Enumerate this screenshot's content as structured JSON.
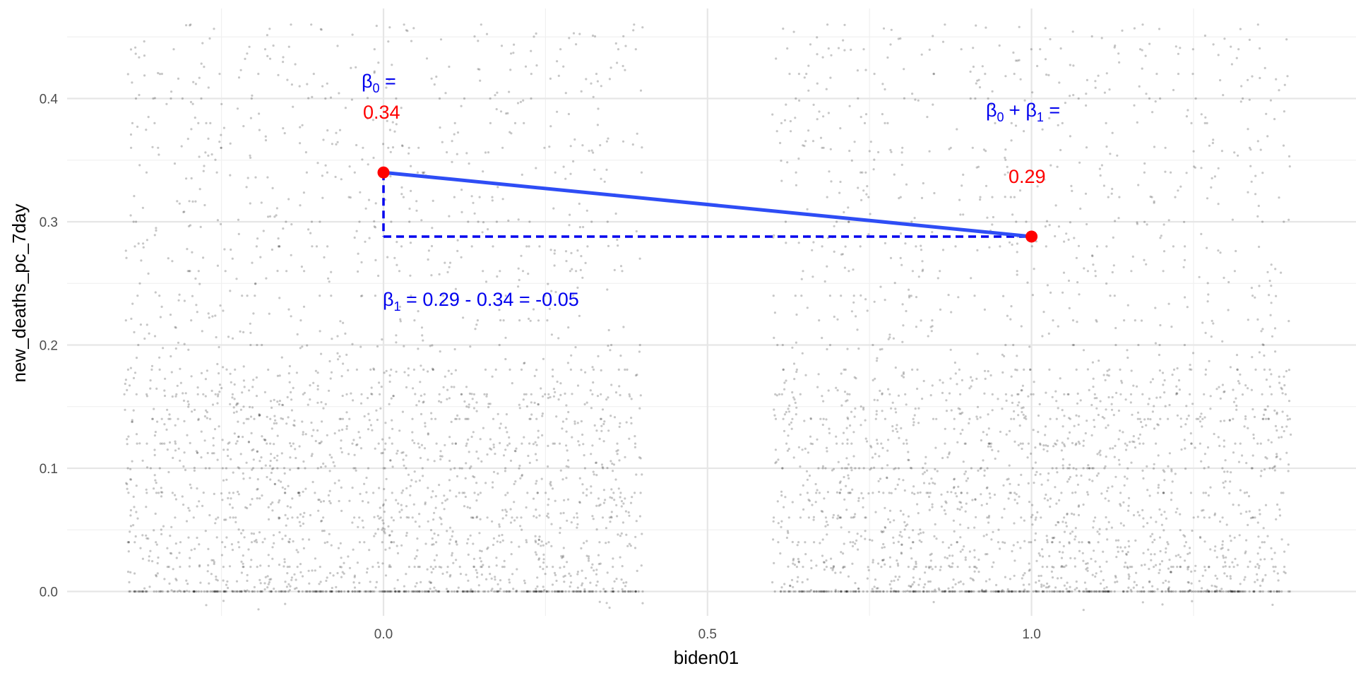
{
  "chart_data": {
    "type": "scatter",
    "title": "",
    "xlabel": "biden01",
    "ylabel": "new_deaths_pc_7day",
    "xlim": [
      -0.4,
      1.4
    ],
    "ylim": [
      0,
      0.46
    ],
    "x_ticks": [
      0.0,
      0.5,
      1.0
    ],
    "x_tick_labels": [
      "0.0",
      "0.5",
      "1.0"
    ],
    "y_ticks": [
      0.0,
      0.1,
      0.2,
      0.3,
      0.4
    ],
    "y_tick_labels": [
      "0.0",
      "0.1",
      "0.2",
      "0.3",
      "0.4"
    ],
    "grid": true,
    "jitter": {
      "description": "jittered points around x=0 and x=1",
      "groups": [
        {
          "x": 0,
          "x_range": [
            -0.4,
            0.4
          ]
        },
        {
          "x": 1,
          "x_range": [
            0.6,
            1.4
          ]
        }
      ],
      "point_color": "#000000",
      "point_alpha": 0.22
    },
    "fit_line": {
      "points": [
        {
          "x": 0,
          "y": 0.34
        },
        {
          "x": 1,
          "y": 0.288
        }
      ],
      "color": "#2e4df5"
    },
    "mean_points": [
      {
        "x": 0,
        "y": 0.34,
        "color": "#ff0000"
      },
      {
        "x": 1,
        "y": 0.288,
        "color": "#ff0000"
      }
    ],
    "dashed_guides": {
      "vertical": {
        "x": 0,
        "y_from": 0.34,
        "y_to": 0.288
      },
      "horizontal": {
        "y": 0.288,
        "x_from": 0,
        "x_to": 1
      },
      "color": "#0000ee"
    },
    "annotations": {
      "beta0_label": {
        "main": "β",
        "sub": "0",
        "rest": " =",
        "color": "#0000ee"
      },
      "beta0_value": {
        "text": "0.34",
        "color": "#ff0000"
      },
      "beta01_label": {
        "p1": "β",
        "s1": "0",
        "p2": " + β",
        "s2": "1",
        "p3": " =",
        "color": "#0000ee"
      },
      "beta01_value": {
        "text": "0.29",
        "color": "#ff0000"
      },
      "beta1_label": {
        "main": "β",
        "sub": "1",
        "rest": " = 0.29 - 0.34 = -0.05",
        "color": "#0000ee"
      }
    }
  }
}
